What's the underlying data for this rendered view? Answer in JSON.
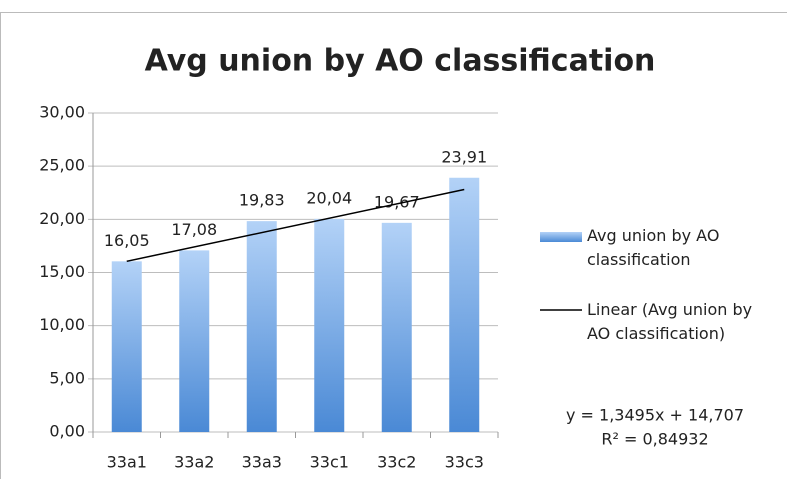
{
  "chart_data": {
    "type": "bar",
    "title": "Avg union by AO classification",
    "categories": [
      "33a1",
      "33a2",
      "33a3",
      "33c1",
      "33c2",
      "33c3"
    ],
    "series": [
      {
        "name": "Avg union by AO classification",
        "color": "#4f8fd9",
        "values": [
          16.05,
          17.08,
          19.83,
          20.04,
          19.67,
          23.91
        ],
        "value_labels": [
          "16,05",
          "17,08",
          "19,83",
          "20,04",
          "19,67",
          "23,91"
        ]
      }
    ],
    "trendline": {
      "name": "Linear (Avg union by AO classification)",
      "color": "#000000",
      "slope": 1.3495,
      "intercept": 14.707,
      "equation": "y = 1,3495x + 14,707",
      "r_squared": "R² = 0,84932"
    },
    "ylim": [
      0,
      30
    ],
    "yticks": [
      {
        "value": 0,
        "label": "0,00"
      },
      {
        "value": 5,
        "label": "5,00"
      },
      {
        "value": 10,
        "label": "10,00"
      },
      {
        "value": 15,
        "label": "15,00"
      },
      {
        "value": 20,
        "label": "20,00"
      },
      {
        "value": 25,
        "label": "25,00"
      },
      {
        "value": 30,
        "label": "30,00"
      }
    ],
    "grid": true,
    "legend": "right"
  }
}
